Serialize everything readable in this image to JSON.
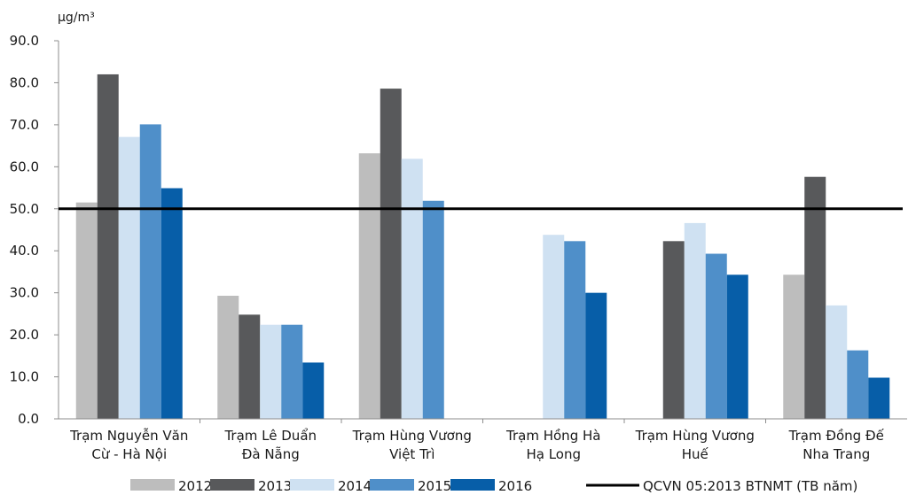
{
  "chart_data": {
    "type": "bar",
    "unit_label": "µg/m³",
    "ylim": [
      0,
      90
    ],
    "yticks": [
      "0.0",
      "10.0",
      "20.0",
      "30.0",
      "40.0",
      "50.0",
      "60.0",
      "70.0",
      "80.0",
      "90.0"
    ],
    "categories": [
      [
        "Trạm Nguyễn Văn",
        "Cừ - Hà Nội"
      ],
      [
        "Trạm Lê Duẩn",
        "Đà Nẵng"
      ],
      [
        "Trạm Hùng Vương",
        "Việt Trì"
      ],
      [
        "Trạm Hồng Hà",
        "Hạ Long"
      ],
      [
        "Trạm Hùng Vương",
        "Huế"
      ],
      [
        "Trạm Đồng Đế",
        "Nha Trang"
      ]
    ],
    "series": [
      {
        "name": "2012",
        "color": "#bdbdbd",
        "values": [
          51.5,
          29.3,
          63.2,
          null,
          null,
          34.3
        ]
      },
      {
        "name": "2013",
        "color": "#58595b",
        "values": [
          82.0,
          24.8,
          78.6,
          null,
          42.3,
          57.6
        ]
      },
      {
        "name": "2014",
        "color": "#cfe1f2",
        "values": [
          67.1,
          22.4,
          61.9,
          43.8,
          46.6,
          27.0
        ]
      },
      {
        "name": "2015",
        "color": "#4f8fc9",
        "values": [
          70.1,
          22.4,
          51.9,
          42.3,
          39.3,
          16.3
        ]
      },
      {
        "name": "2016",
        "color": "#075ea8",
        "values": [
          54.9,
          13.4,
          null,
          30.0,
          34.3,
          9.8
        ]
      }
    ],
    "reference_line": {
      "name": "QCVN 05:2013 BTNMT (TB năm)",
      "value": 50,
      "color": "#000000"
    },
    "grid": false,
    "legend_position": "bottom"
  }
}
